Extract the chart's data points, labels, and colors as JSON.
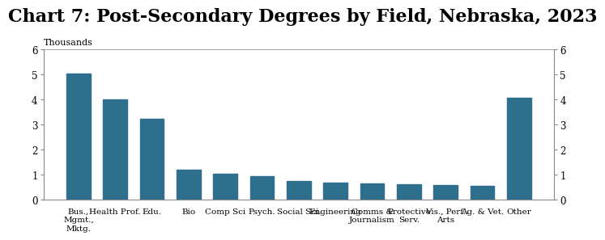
{
  "title": "Chart 7: Post-Secondary Degrees by Field, Nebraska, 2023",
  "ylabel_left": "Thousands",
  "categories": [
    "Bus.,\nMgmt.,\nMktg.",
    "Health Prof.",
    "Edu.",
    "Bio",
    "Comp Sci",
    "Psych.",
    "Social Sci.",
    "Engineering",
    "Comms &\nJournalism",
    "Protective\nServ.",
    "Vis., Perf.\nArts",
    "Ag. & Vet.",
    "Other"
  ],
  "values": [
    5.05,
    4.02,
    3.22,
    1.22,
    1.06,
    0.96,
    0.76,
    0.68,
    0.66,
    0.63,
    0.6,
    0.56,
    4.07
  ],
  "bar_color": "#2e6f8e",
  "ylim": [
    0,
    6
  ],
  "yticks": [
    0,
    1,
    2,
    3,
    4,
    5,
    6
  ],
  "background_color": "#ffffff",
  "title_fontsize": 16,
  "axis_fontsize": 8.5,
  "label_fontsize": 7.5,
  "thousands_fontsize": 8
}
